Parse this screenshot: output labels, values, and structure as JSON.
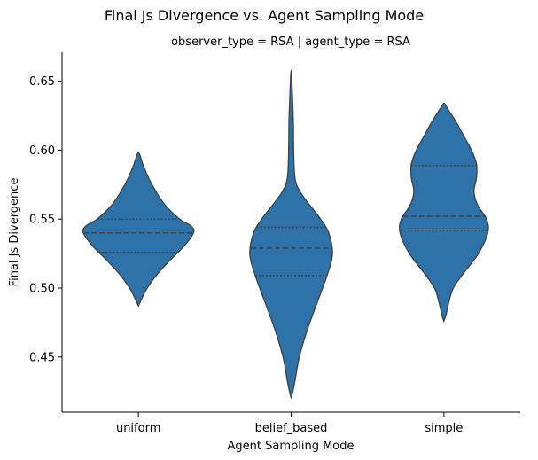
{
  "chart_data": {
    "type": "violin",
    "title": "Final Js Divergence vs. Agent Sampling Mode",
    "subtitle": "observer_type = RSA | agent_type = RSA",
    "xlabel": "Agent Sampling Mode",
    "ylabel": "Final Js Divergence",
    "categories": [
      "uniform",
      "belief_based",
      "simple"
    ],
    "ylim": [
      0.41,
      0.671
    ],
    "yticks": [
      0.45,
      0.5,
      0.55,
      0.6,
      0.65
    ],
    "ytick_labels": [
      "0.45",
      "0.50",
      "0.55",
      "0.60",
      "0.65"
    ],
    "grid": false,
    "color": "#2d72a8",
    "violins": [
      {
        "category": "uniform",
        "min": 0.487,
        "max": 0.598,
        "q1": 0.526,
        "median": 0.54,
        "q3": 0.55,
        "profile": [
          [
            0.487,
            0
          ],
          [
            0.492,
            0.05
          ],
          [
            0.5,
            0.14
          ],
          [
            0.51,
            0.3
          ],
          [
            0.52,
            0.5
          ],
          [
            0.53,
            0.72
          ],
          [
            0.54,
            0.88
          ],
          [
            0.545,
            0.84
          ],
          [
            0.55,
            0.66
          ],
          [
            0.56,
            0.43
          ],
          [
            0.57,
            0.28
          ],
          [
            0.58,
            0.16
          ],
          [
            0.59,
            0.07
          ],
          [
            0.598,
            0
          ]
        ]
      },
      {
        "category": "belief_based",
        "min": 0.42,
        "max": 0.658,
        "q1": 0.509,
        "median": 0.529,
        "q3": 0.544,
        "profile": [
          [
            0.42,
            0
          ],
          [
            0.43,
            0.05
          ],
          [
            0.45,
            0.13
          ],
          [
            0.47,
            0.26
          ],
          [
            0.49,
            0.42
          ],
          [
            0.51,
            0.58
          ],
          [
            0.525,
            0.66
          ],
          [
            0.54,
            0.6
          ],
          [
            0.55,
            0.47
          ],
          [
            0.56,
            0.3
          ],
          [
            0.57,
            0.14
          ],
          [
            0.58,
            0.06
          ],
          [
            0.6,
            0.04
          ],
          [
            0.62,
            0.035
          ],
          [
            0.64,
            0.02
          ],
          [
            0.658,
            0
          ]
        ]
      },
      {
        "category": "simple",
        "min": 0.476,
        "max": 0.634,
        "q1": 0.542,
        "median": 0.552,
        "q3": 0.589,
        "profile": [
          [
            0.476,
            0
          ],
          [
            0.48,
            0.03
          ],
          [
            0.49,
            0.08
          ],
          [
            0.5,
            0.15
          ],
          [
            0.51,
            0.3
          ],
          [
            0.525,
            0.55
          ],
          [
            0.54,
            0.7
          ],
          [
            0.55,
            0.68
          ],
          [
            0.56,
            0.54
          ],
          [
            0.57,
            0.48
          ],
          [
            0.58,
            0.52
          ],
          [
            0.59,
            0.52
          ],
          [
            0.6,
            0.44
          ],
          [
            0.61,
            0.32
          ],
          [
            0.62,
            0.2
          ],
          [
            0.63,
            0.06
          ],
          [
            0.634,
            0
          ]
        ]
      }
    ]
  }
}
